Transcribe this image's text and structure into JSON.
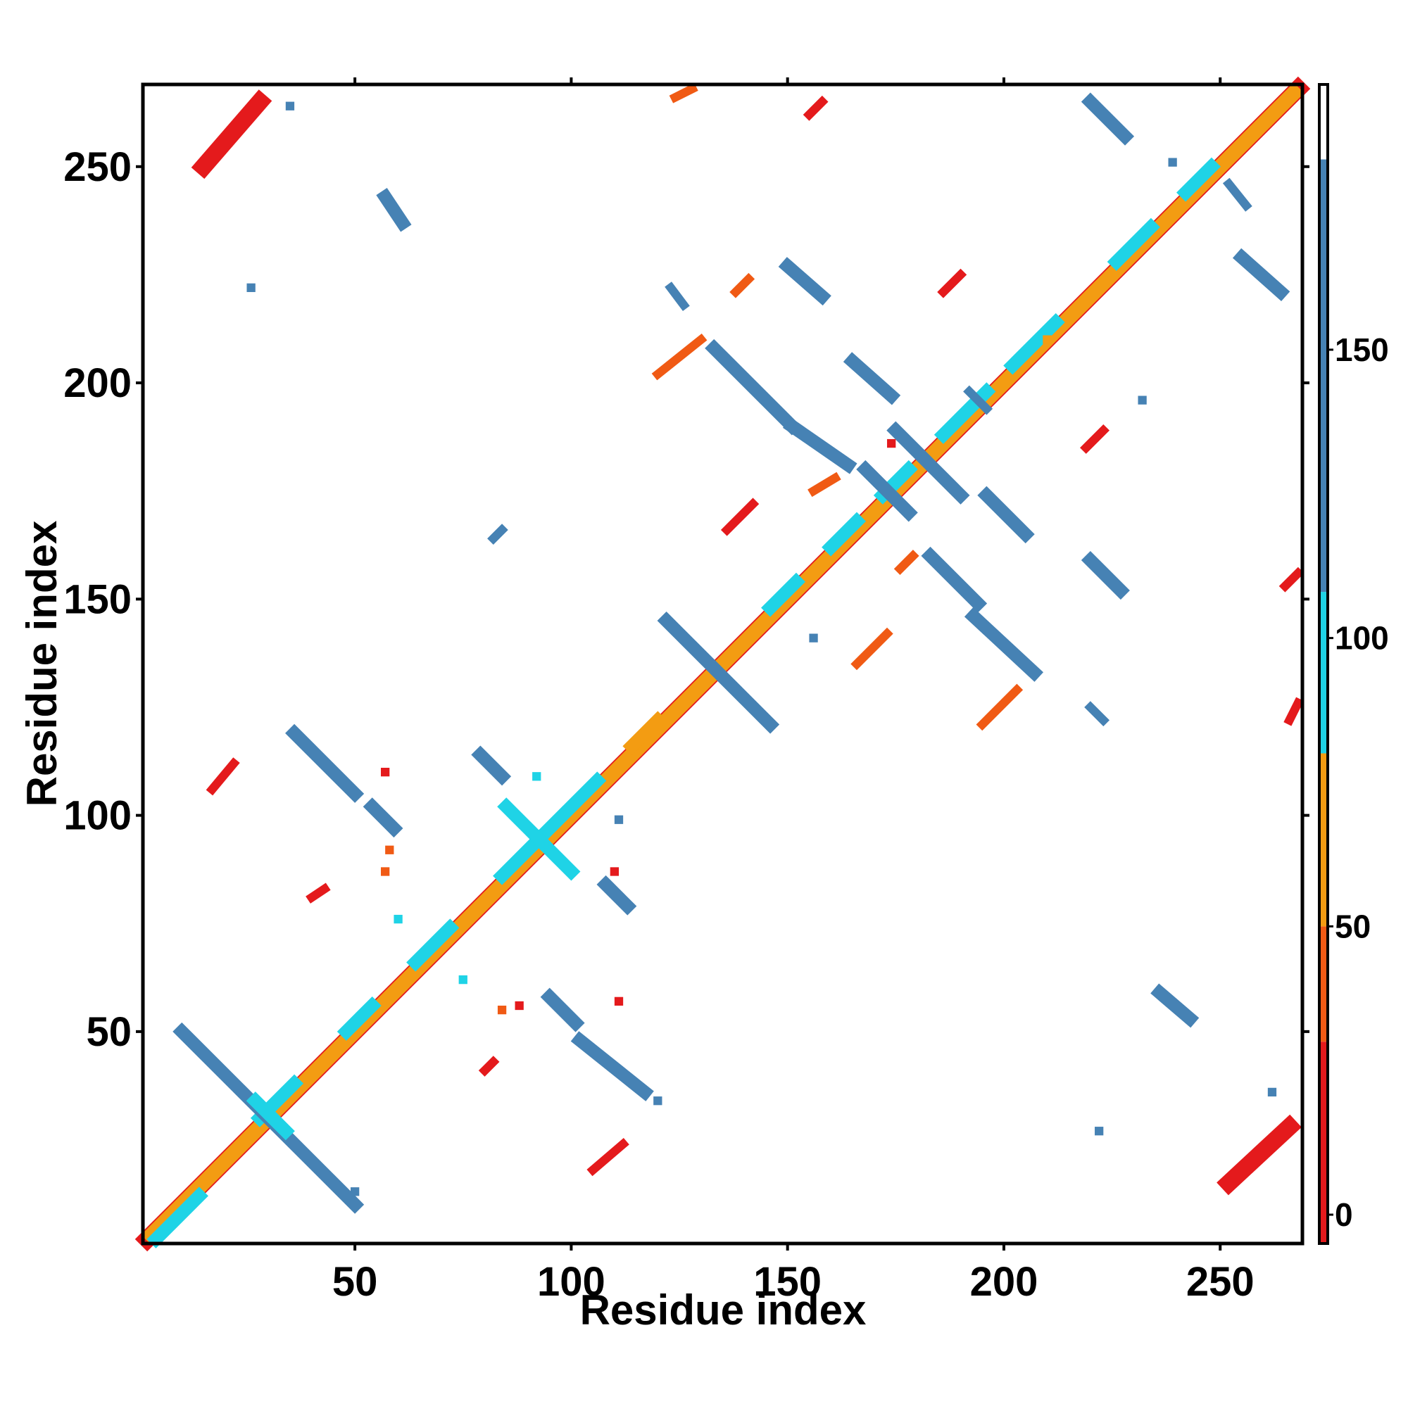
{
  "chart_data": {
    "type": "heatmap",
    "title": "",
    "xlabel": "Residue index",
    "ylabel": "Residue index",
    "xlim": [
      1,
      269
    ],
    "ylim": [
      1,
      269
    ],
    "x_ticks": [
      50,
      100,
      150,
      200,
      250
    ],
    "y_ticks": [
      50,
      100,
      150,
      200,
      250
    ],
    "grid": false,
    "legend": "colorbar-right",
    "colorbar": {
      "range": [
        -5,
        196
      ],
      "ticks": [
        0,
        50,
        100,
        150
      ],
      "bands": [
        {
          "from": -5,
          "to": 30,
          "color": "#e41a1c"
        },
        {
          "from": 30,
          "to": 50,
          "color": "#f05a14"
        },
        {
          "from": 50,
          "to": 80,
          "color": "#f39c12"
        },
        {
          "from": 80,
          "to": 108,
          "color": "#1fd3e6"
        },
        {
          "from": 108,
          "to": 183,
          "color": "#4682b4"
        },
        {
          "from": 183,
          "to": 196,
          "color": "#ffffff"
        }
      ]
    },
    "segments": [
      {
        "x1": 2,
        "y1": 2,
        "x2": 268,
        "y2": 268,
        "color": "#e41a1c",
        "width": 4
      },
      {
        "x1": 3,
        "y1": 2,
        "x2": 268,
        "y2": 267,
        "color": "#f39c12",
        "width": 2
      },
      {
        "x1": 2,
        "y1": 3,
        "x2": 267,
        "y2": 268,
        "color": "#f39c12",
        "width": 2
      },
      {
        "x1": 4,
        "y1": 2,
        "x2": 14,
        "y2": 12,
        "color": "#1fd3e6",
        "width": 3
      },
      {
        "x1": 28,
        "y1": 30,
        "x2": 36,
        "y2": 38,
        "color": "#1fd3e6",
        "width": 3
      },
      {
        "x1": 48,
        "y1": 50,
        "x2": 54,
        "y2": 56,
        "color": "#1fd3e6",
        "width": 3
      },
      {
        "x1": 64,
        "y1": 66,
        "x2": 72,
        "y2": 74,
        "color": "#1fd3e6",
        "width": 3
      },
      {
        "x1": 84,
        "y1": 86,
        "x2": 98,
        "y2": 100,
        "color": "#1fd3e6",
        "width": 3
      },
      {
        "x1": 100,
        "y1": 102,
        "x2": 106,
        "y2": 108,
        "color": "#1fd3e6",
        "width": 3
      },
      {
        "x1": 114,
        "y1": 116,
        "x2": 120,
        "y2": 122,
        "color": "#f39c12",
        "width": 3
      },
      {
        "x1": 146,
        "y1": 148,
        "x2": 152,
        "y2": 154,
        "color": "#1fd3e6",
        "width": 3
      },
      {
        "x1": 160,
        "y1": 162,
        "x2": 166,
        "y2": 168,
        "color": "#1fd3e6",
        "width": 3
      },
      {
        "x1": 172,
        "y1": 174,
        "x2": 178,
        "y2": 180,
        "color": "#1fd3e6",
        "width": 3
      },
      {
        "x1": 186,
        "y1": 188,
        "x2": 196,
        "y2": 198,
        "color": "#1fd3e6",
        "width": 3
      },
      {
        "x1": 202,
        "y1": 204,
        "x2": 212,
        "y2": 214,
        "color": "#1fd3e6",
        "width": 3
      },
      {
        "x1": 226,
        "y1": 228,
        "x2": 234,
        "y2": 236,
        "color": "#1fd3e6",
        "width": 3
      },
      {
        "x1": 242,
        "y1": 244,
        "x2": 248,
        "y2": 250,
        "color": "#1fd3e6",
        "width": 3
      },
      {
        "x1": 15,
        "y1": 250,
        "x2": 28,
        "y2": 265,
        "color": "#e41a1c",
        "width": 4
      },
      {
        "x1": 252,
        "y1": 15,
        "x2": 266,
        "y2": 28,
        "color": "#e41a1c",
        "width": 4
      },
      {
        "x1": 10,
        "y1": 50,
        "x2": 50,
        "y2": 10,
        "color": "#4682b4",
        "width": 3
      },
      {
        "x1": 27,
        "y1": 34,
        "x2": 34,
        "y2": 27,
        "color": "#1fd3e6",
        "width": 3
      },
      {
        "x1": 36,
        "y1": 119,
        "x2": 50,
        "y2": 105,
        "color": "#4682b4",
        "width": 3
      },
      {
        "x1": 54,
        "y1": 102,
        "x2": 59,
        "y2": 97,
        "color": "#4682b4",
        "width": 3
      },
      {
        "x1": 79,
        "y1": 114,
        "x2": 84,
        "y2": 109,
        "color": "#4682b4",
        "width": 3
      },
      {
        "x1": 85,
        "y1": 102,
        "x2": 100,
        "y2": 87,
        "color": "#1fd3e6",
        "width": 3
      },
      {
        "x1": 108,
        "y1": 84,
        "x2": 113,
        "y2": 79,
        "color": "#4682b4",
        "width": 3
      },
      {
        "x1": 95,
        "y1": 58,
        "x2": 101,
        "y2": 52,
        "color": "#4682b4",
        "width": 3
      },
      {
        "x1": 102,
        "y1": 48,
        "x2": 117,
        "y2": 36,
        "color": "#4682b4",
        "width": 3
      },
      {
        "x1": 122,
        "y1": 145,
        "x2": 146,
        "y2": 121,
        "color": "#4682b4",
        "width": 3
      },
      {
        "x1": 133,
        "y1": 208,
        "x2": 151,
        "y2": 190,
        "color": "#4682b4",
        "width": 3
      },
      {
        "x1": 151,
        "y1": 190,
        "x2": 164,
        "y2": 181,
        "color": "#4682b4",
        "width": 3
      },
      {
        "x1": 150,
        "y1": 227,
        "x2": 158,
        "y2": 220,
        "color": "#4682b4",
        "width": 3
      },
      {
        "x1": 165,
        "y1": 205,
        "x2": 174,
        "y2": 197,
        "color": "#4682b4",
        "width": 3
      },
      {
        "x1": 168,
        "y1": 180,
        "x2": 178,
        "y2": 170,
        "color": "#4682b4",
        "width": 3
      },
      {
        "x1": 175,
        "y1": 189,
        "x2": 190,
        "y2": 174,
        "color": "#4682b4",
        "width": 3
      },
      {
        "x1": 196,
        "y1": 174,
        "x2": 205,
        "y2": 165,
        "color": "#4682b4",
        "width": 3
      },
      {
        "x1": 183,
        "y1": 160,
        "x2": 194,
        "y2": 149,
        "color": "#4682b4",
        "width": 3
      },
      {
        "x1": 193,
        "y1": 146,
        "x2": 207,
        "y2": 133,
        "color": "#4682b4",
        "width": 3
      },
      {
        "x1": 220,
        "y1": 159,
        "x2": 227,
        "y2": 152,
        "color": "#4682b4",
        "width": 3
      },
      {
        "x1": 220,
        "y1": 265,
        "x2": 228,
        "y2": 257,
        "color": "#4682b4",
        "width": 3
      },
      {
        "x1": 255,
        "y1": 229,
        "x2": 264,
        "y2": 221,
        "color": "#4682b4",
        "width": 3
      },
      {
        "x1": 236,
        "y1": 59,
        "x2": 243,
        "y2": 53,
        "color": "#4682b4",
        "width": 3
      },
      {
        "x1": 57,
        "y1": 243,
        "x2": 61,
        "y2": 237,
        "color": "#4682b4",
        "width": 3
      },
      {
        "x1": 17,
        "y1": 106,
        "x2": 22,
        "y2": 112,
        "color": "#e41a1c",
        "width": 2
      },
      {
        "x1": 40,
        "y1": 81,
        "x2": 43,
        "y2": 83,
        "color": "#e41a1c",
        "width": 2
      },
      {
        "x1": 80,
        "y1": 41,
        "x2": 82,
        "y2": 43,
        "color": "#e41a1c",
        "width": 2
      },
      {
        "x1": 105,
        "y1": 18,
        "x2": 112,
        "y2": 24,
        "color": "#e41a1c",
        "width": 2
      },
      {
        "x1": 120,
        "y1": 202,
        "x2": 130,
        "y2": 210,
        "color": "#f05a14",
        "width": 2
      },
      {
        "x1": 124,
        "y1": 266,
        "x2": 128,
        "y2": 268,
        "color": "#f05a14",
        "width": 2
      },
      {
        "x1": 136,
        "y1": 166,
        "x2": 142,
        "y2": 172,
        "color": "#e41a1c",
        "width": 2
      },
      {
        "x1": 155,
        "y1": 262,
        "x2": 158,
        "y2": 265,
        "color": "#e41a1c",
        "width": 2
      },
      {
        "x1": 138,
        "y1": 221,
        "x2": 141,
        "y2": 224,
        "color": "#f05a14",
        "width": 2
      },
      {
        "x1": 156,
        "y1": 175,
        "x2": 161,
        "y2": 178,
        "color": "#f05a14",
        "width": 2
      },
      {
        "x1": 166,
        "y1": 135,
        "x2": 173,
        "y2": 142,
        "color": "#f05a14",
        "width": 2
      },
      {
        "x1": 176,
        "y1": 157,
        "x2": 179,
        "y2": 160,
        "color": "#f05a14",
        "width": 2
      },
      {
        "x1": 186,
        "y1": 221,
        "x2": 190,
        "y2": 225,
        "color": "#e41a1c",
        "width": 2
      },
      {
        "x1": 195,
        "y1": 121,
        "x2": 203,
        "y2": 129,
        "color": "#f05a14",
        "width": 2
      },
      {
        "x1": 219,
        "y1": 185,
        "x2": 223,
        "y2": 189,
        "color": "#e41a1c",
        "width": 2
      },
      {
        "x1": 265,
        "y1": 153,
        "x2": 268,
        "y2": 156,
        "color": "#e41a1c",
        "width": 2
      },
      {
        "x1": 266,
        "y1": 122,
        "x2": 268,
        "y2": 126,
        "color": "#e41a1c",
        "width": 2
      },
      {
        "x1": 123,
        "y1": 222,
        "x2": 126,
        "y2": 218,
        "color": "#4682b4",
        "width": 2
      },
      {
        "x1": 192,
        "y1": 198,
        "x2": 196,
        "y2": 194,
        "color": "#4682b4",
        "width": 2
      },
      {
        "x1": 220,
        "y1": 125,
        "x2": 223,
        "y2": 122,
        "color": "#4682b4",
        "width": 2
      },
      {
        "x1": 252,
        "y1": 246,
        "x2": 256,
        "y2": 241,
        "color": "#4682b4",
        "width": 2
      },
      {
        "x1": 82,
        "y1": 164,
        "x2": 84,
        "y2": 166,
        "color": "#4682b4",
        "width": 2
      }
    ],
    "points": [
      {
        "x": 35,
        "y": 264,
        "color": "#4682b4"
      },
      {
        "x": 26,
        "y": 222,
        "color": "#4682b4"
      },
      {
        "x": 239,
        "y": 251,
        "color": "#4682b4"
      },
      {
        "x": 156,
        "y": 141,
        "color": "#4682b4"
      },
      {
        "x": 232,
        "y": 196,
        "color": "#4682b4"
      },
      {
        "x": 222,
        "y": 27,
        "color": "#4682b4"
      },
      {
        "x": 262,
        "y": 36,
        "color": "#4682b4"
      },
      {
        "x": 120,
        "y": 34,
        "color": "#4682b4"
      },
      {
        "x": 50,
        "y": 13,
        "color": "#4682b4"
      },
      {
        "x": 111,
        "y": 99,
        "color": "#4682b4"
      },
      {
        "x": 92,
        "y": 109,
        "color": "#1fd3e6"
      },
      {
        "x": 75,
        "y": 62,
        "color": "#1fd3e6"
      },
      {
        "x": 60,
        "y": 76,
        "color": "#1fd3e6"
      },
      {
        "x": 57,
        "y": 87,
        "color": "#f05a14"
      },
      {
        "x": 57,
        "y": 110,
        "color": "#e41a1c"
      },
      {
        "x": 58,
        "y": 92,
        "color": "#f05a14"
      },
      {
        "x": 88,
        "y": 56,
        "color": "#e41a1c"
      },
      {
        "x": 84,
        "y": 55,
        "color": "#f05a14"
      },
      {
        "x": 111,
        "y": 57,
        "color": "#e41a1c"
      },
      {
        "x": 110,
        "y": 87,
        "color": "#e41a1c"
      },
      {
        "x": 174,
        "y": 186,
        "color": "#e41a1c"
      },
      {
        "x": 210,
        "y": 210,
        "color": "#f39c12"
      }
    ]
  }
}
